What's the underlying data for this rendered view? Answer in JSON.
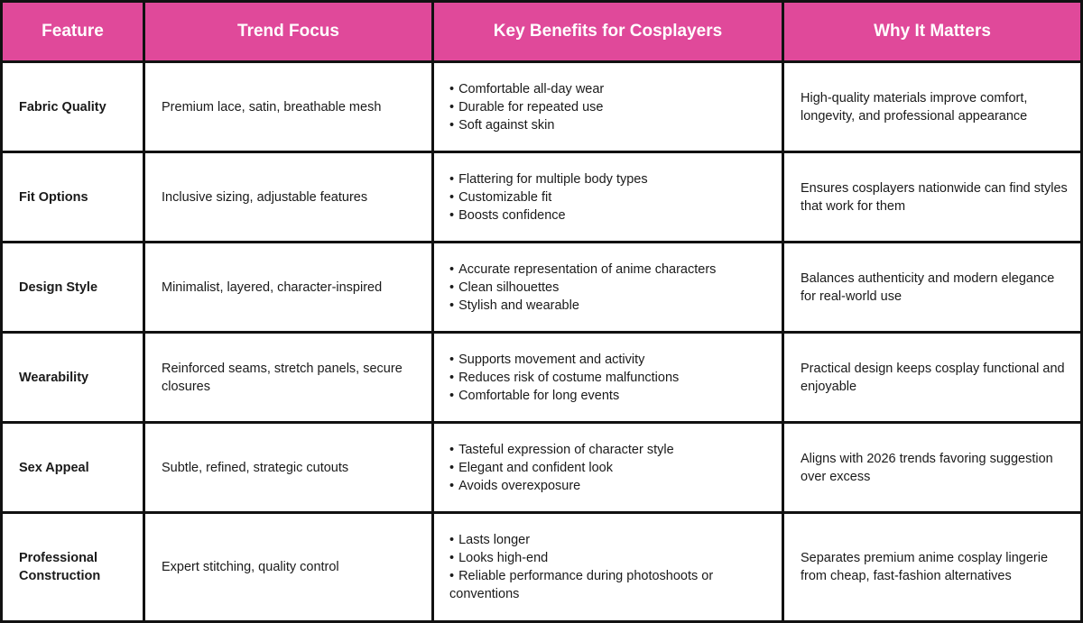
{
  "headers": [
    "Feature",
    "Trend Focus",
    "Key Benefits for Cosplayers",
    "Why It Matters"
  ],
  "rows": [
    {
      "feature": "Fabric Quality",
      "trend": "Premium lace, satin, breathable mesh",
      "benefits": [
        "Comfortable all-day wear",
        "Durable for repeated use",
        "Soft against skin"
      ],
      "why": "High-quality materials improve comfort, longevity, and professional appearance"
    },
    {
      "feature": "Fit Options",
      "trend": "Inclusive sizing, adjustable features",
      "benefits": [
        "Flattering for multiple body types",
        "Customizable fit",
        "Boosts confidence"
      ],
      "why": "Ensures cosplayers nationwide can find styles that work for them"
    },
    {
      "feature": "Design Style",
      "trend": "Minimalist, layered, character-inspired",
      "benefits": [
        "Accurate representation of anime characters",
        "Clean silhouettes",
        "Stylish and wearable"
      ],
      "why": "Balances authenticity and modern elegance for real-world use"
    },
    {
      "feature": "Wearability",
      "trend": "Reinforced seams, stretch panels, secure closures",
      "benefits": [
        "Supports movement and activity",
        "Reduces risk of costume malfunctions",
        "Comfortable for long events"
      ],
      "why": "Practical design keeps cosplay functional and enjoyable"
    },
    {
      "feature": "Sex Appeal",
      "trend": "Subtle, refined, strategic cutouts",
      "benefits": [
        "Tasteful expression of character style",
        "Elegant and confident look",
        "Avoids overexposure"
      ],
      "why": "Aligns with 2026 trends favoring suggestion over excess"
    },
    {
      "feature": "Professional Construction",
      "trend": "Expert stitching, quality control",
      "benefits": [
        "Lasts longer",
        "Looks high-end",
        "Reliable performance during photoshoots or conventions"
      ],
      "why": "Separates premium anime cosplay lingerie from cheap, fast-fashion alternatives"
    }
  ],
  "colors": {
    "header_bg": "#e0499a",
    "header_text": "#ffffff",
    "grid_lines": "#111111"
  }
}
